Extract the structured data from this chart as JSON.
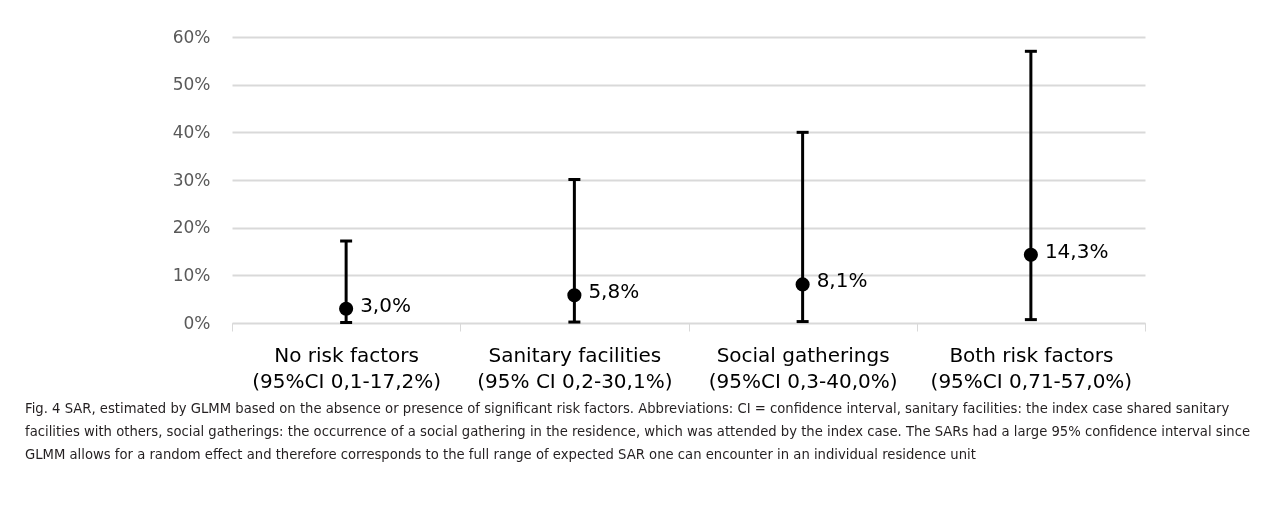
{
  "chart_data": {
    "type": "scatter",
    "categories": [
      "No risk factors\n(95%CI 0,1-17,2%)",
      "Sanitary facilities\n(95% CI 0,2-30,1%)",
      "Social gatherings\n(95%CI 0,3-40,0%)",
      "Both risk factors\n(95%CI 0,71-57,0%)"
    ],
    "values": [
      3.0,
      5.8,
      8.1,
      14.3
    ],
    "errors": [
      [
        0.1,
        17.2
      ],
      [
        0.2,
        30.1
      ],
      [
        0.3,
        40.0
      ],
      [
        0.71,
        57.0
      ]
    ],
    "value_labels": [
      "3,0%",
      "5,8%",
      "8,1%",
      "14,3%"
    ],
    "color": "#000000",
    "marker": "circle",
    "ylim": [
      0,
      60
    ],
    "yticks": [
      {
        "value": 0,
        "label": "0%"
      },
      {
        "value": 10,
        "label": "10%"
      },
      {
        "value": 20,
        "label": "20%"
      },
      {
        "value": 30,
        "label": "30%"
      },
      {
        "value": 40,
        "label": "40%"
      },
      {
        "value": 50,
        "label": "50%"
      },
      {
        "value": 60,
        "label": "60%"
      }
    ],
    "grid": "y",
    "annotations": [
      "Fig. 4  SAR, estimated by GLMM based on the absence or presence of significant risk factors. Abbreviations: CI = confidence interval, sanitary facilities: the index case shared sanitary facilities with others, social gatherings: the occurrence of a social gathering in the residence, which was attended by the index case. The SARs had a large 95% confidence interval since GLMM allows for a random effect and therefore corresponds to the full range of expected SAR one can encounter in an individual residence unit"
    ]
  }
}
